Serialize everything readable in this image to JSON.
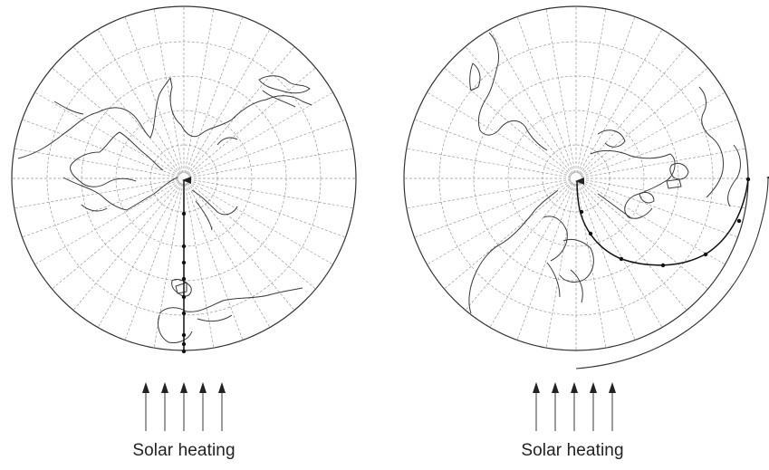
{
  "panels": [
    {
      "caption": "Solar heating",
      "track": "straight"
    },
    {
      "caption": "Solar heating",
      "track": "curved"
    }
  ],
  "colors": {
    "outline": "#333333",
    "graticule": "#9a9a9a",
    "coast": "#3a3a3a",
    "track": "#111111",
    "arrow": "#666666"
  }
}
